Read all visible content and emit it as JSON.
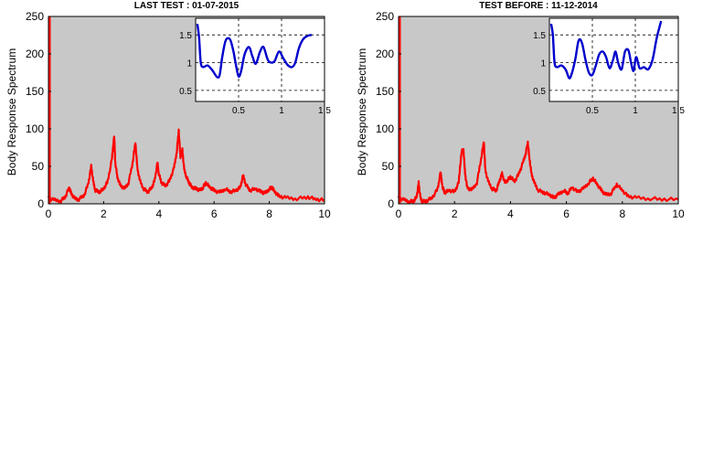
{
  "chart_data": [
    {
      "type": "line",
      "title": "LAST TEST : 01-07-2015",
      "xlabel": "",
      "ylabel": "Body Response Spectrum",
      "xlim": [
        0,
        10
      ],
      "ylim": [
        0,
        250
      ],
      "xticks": [
        "0",
        "2",
        "4",
        "6",
        "8",
        "10"
      ],
      "yticks": [
        "0",
        "50",
        "100",
        "150",
        "200",
        "250"
      ],
      "background": "#c8c8c8",
      "series": [
        {
          "color": "#ff0000",
          "x": [
            0,
            0.2,
            0.45,
            0.62,
            0.75,
            0.82,
            0.95,
            1.1,
            1.3,
            1.45,
            1.55,
            1.62,
            1.7,
            1.85,
            2.0,
            2.15,
            2.3,
            2.38,
            2.42,
            2.5,
            2.6,
            2.75,
            2.9,
            3.05,
            3.15,
            3.22,
            3.3,
            3.45,
            3.6,
            3.75,
            3.85,
            3.95,
            4.0,
            4.1,
            4.25,
            4.4,
            4.55,
            4.65,
            4.72,
            4.78,
            4.85,
            4.92,
            5.0,
            5.1,
            5.2,
            5.35,
            5.5,
            5.6,
            5.7,
            5.85,
            6.0,
            6.2,
            6.4,
            6.6,
            6.8,
            6.95,
            7.05,
            7.15,
            7.3,
            7.5,
            7.7,
            7.85,
            8.0,
            8.1,
            8.2,
            8.35,
            8.6,
            9.0,
            9.4,
            9.7,
            10.0
          ],
          "y": [
            8,
            5,
            4,
            10,
            22,
            14,
            7,
            6,
            12,
            28,
            50,
            30,
            18,
            16,
            20,
            30,
            60,
            92,
            55,
            35,
            25,
            20,
            28,
            55,
            82,
            48,
            32,
            20,
            16,
            22,
            32,
            55,
            40,
            28,
            24,
            32,
            48,
            70,
            98,
            62,
            72,
            45,
            36,
            28,
            22,
            20,
            18,
            22,
            28,
            22,
            18,
            15,
            20,
            16,
            18,
            22,
            38,
            26,
            18,
            20,
            16,
            14,
            20,
            22,
            16,
            10,
            8,
            7,
            9,
            6,
            5
          ]
        }
      ],
      "inset": {
        "type": "line",
        "xlim": [
          0,
          1.5
        ],
        "ylim": [
          0.3,
          1.8
        ],
        "xticks": [
          "0.5",
          "1",
          "1.5"
        ],
        "yticks": [
          "0.5",
          "1",
          "1.5"
        ],
        "series": [
          {
            "color": "#0000cc",
            "x": [
              0.02,
              0.04,
              0.06,
              0.09,
              0.14,
              0.2,
              0.25,
              0.28,
              0.31,
              0.35,
              0.4,
              0.44,
              0.47,
              0.5,
              0.53,
              0.57,
              0.62,
              0.66,
              0.7,
              0.75,
              0.79,
              0.84,
              0.88,
              0.92,
              0.97,
              1.02,
              1.07,
              1.12,
              1.16,
              1.2,
              1.25,
              1.3,
              1.35
            ],
            "y": [
              1.7,
              1.45,
              1.0,
              0.92,
              0.95,
              0.85,
              0.74,
              0.78,
              1.1,
              1.4,
              1.42,
              1.2,
              0.95,
              0.75,
              0.85,
              1.15,
              1.28,
              1.12,
              0.98,
              1.2,
              1.28,
              1.05,
              1.0,
              1.03,
              1.2,
              1.08,
              0.96,
              0.92,
              1.0,
              1.25,
              1.42,
              1.48,
              1.5
            ]
          }
        ]
      }
    },
    {
      "type": "line",
      "title": "TEST BEFORE : 11-12-2014",
      "xlabel": "",
      "ylabel": "Body Response Spectrum",
      "xlim": [
        0,
        10
      ],
      "ylim": [
        0,
        250
      ],
      "xticks": [
        "0",
        "2",
        "4",
        "6",
        "8",
        "10"
      ],
      "yticks": [
        "0",
        "50",
        "100",
        "150",
        "200",
        "250"
      ],
      "background": "#c8c8c8",
      "series": [
        {
          "color": "#ff0000",
          "x": [
            0,
            0.2,
            0.4,
            0.55,
            0.65,
            0.72,
            0.78,
            0.85,
            1.0,
            1.2,
            1.4,
            1.5,
            1.58,
            1.65,
            1.8,
            2.0,
            2.15,
            2.25,
            2.32,
            2.38,
            2.45,
            2.6,
            2.8,
            2.95,
            3.05,
            3.1,
            3.2,
            3.35,
            3.5,
            3.6,
            3.7,
            3.8,
            3.9,
            4.0,
            4.15,
            4.3,
            4.45,
            4.55,
            4.62,
            4.68,
            4.75,
            4.85,
            5.0,
            5.2,
            5.4,
            5.55,
            5.7,
            5.9,
            6.05,
            6.2,
            6.4,
            6.6,
            6.8,
            6.95,
            7.1,
            7.25,
            7.4,
            7.6,
            7.8,
            8.0,
            8.2,
            8.5,
            9.0,
            9.5,
            10.0
          ],
          "y": [
            8,
            5,
            3,
            4,
            10,
            28,
            8,
            3,
            4,
            8,
            20,
            42,
            22,
            15,
            18,
            16,
            28,
            70,
            72,
            40,
            22,
            18,
            28,
            60,
            83,
            45,
            30,
            20,
            18,
            30,
            40,
            28,
            32,
            36,
            30,
            40,
            55,
            68,
            82,
            60,
            40,
            28,
            18,
            15,
            12,
            8,
            12,
            18,
            14,
            22,
            16,
            20,
            28,
            34,
            26,
            18,
            12,
            14,
            26,
            18,
            10,
            8,
            7,
            6,
            6
          ]
        }
      ],
      "inset": {
        "type": "line",
        "xlim": [
          0,
          1.5
        ],
        "ylim": [
          0.3,
          1.8
        ],
        "xticks": [
          "0.5",
          "1",
          "1.5"
        ],
        "yticks": [
          "0.5",
          "1",
          "1.5"
        ],
        "series": [
          {
            "color": "#0000cc",
            "x": [
              0.02,
              0.04,
              0.06,
              0.09,
              0.14,
              0.19,
              0.23,
              0.26,
              0.3,
              0.34,
              0.38,
              0.42,
              0.46,
              0.5,
              0.54,
              0.58,
              0.62,
              0.66,
              0.7,
              0.74,
              0.77,
              0.8,
              0.84,
              0.88,
              0.92,
              0.95,
              0.98,
              1.01,
              1.05,
              1.1,
              1.15,
              1.2,
              1.25,
              1.3
            ],
            "y": [
              1.7,
              1.5,
              1.0,
              0.92,
              0.95,
              0.87,
              0.72,
              0.8,
              1.05,
              1.4,
              1.35,
              1.05,
              0.82,
              0.78,
              0.95,
              1.15,
              1.2,
              1.1,
              0.9,
              1.05,
              1.2,
              1.0,
              0.88,
              1.2,
              1.22,
              1.0,
              0.85,
              1.1,
              0.9,
              0.92,
              0.88,
              1.05,
              1.45,
              1.75
            ]
          }
        ]
      }
    }
  ]
}
